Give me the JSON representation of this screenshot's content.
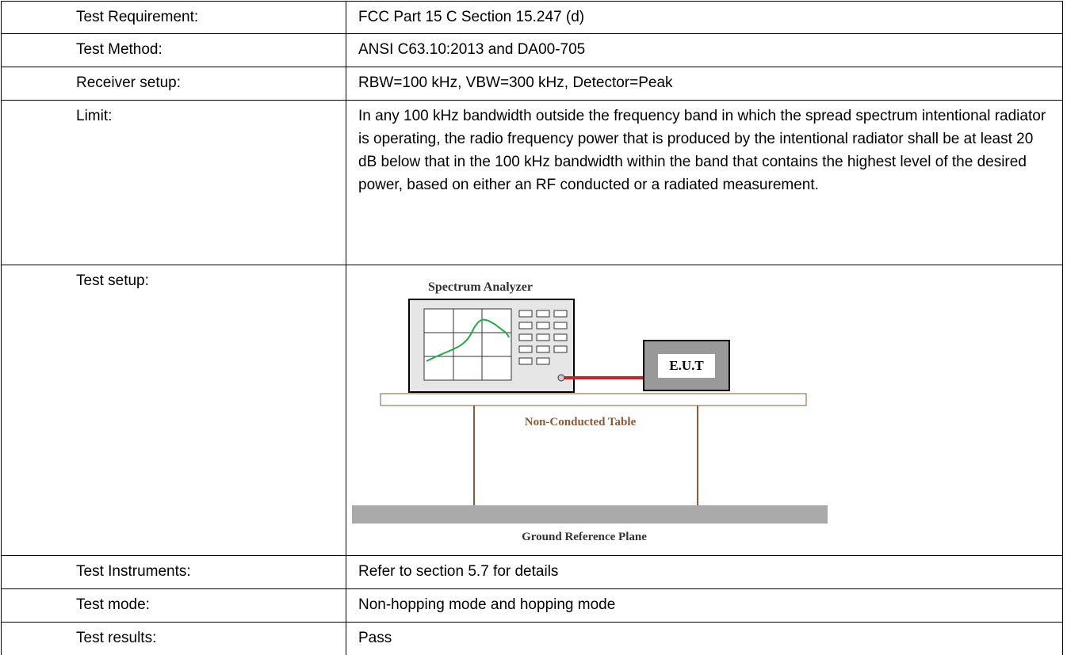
{
  "table": {
    "rows": [
      {
        "label": "Test Requirement:",
        "value": "FCC Part 15 C Section 15.247 (d)"
      },
      {
        "label": "Test Method:",
        "value": "ANSI C63.10:2013 and DA00-705"
      },
      {
        "label": "Receiver setup:",
        "value": "RBW=100 kHz, VBW=300 kHz, Detector=Peak"
      },
      {
        "label": "Limit:",
        "value": "In any 100 kHz bandwidth outside the frequency band in which the spread spectrum intentional radiator is operating, the radio frequency power that is produced by the intentional radiator shall be at least 20 dB below that in the 100 kHz bandwidth within the band that contains the highest level of the desired power, based on either an RF conducted or a radiated measurement."
      },
      {
        "label": "Test setup:",
        "diagram": {
          "analyzer": "Spectrum Analyzer",
          "eut": "E.U.T",
          "table": "Non-Conducted Table",
          "ground": "Ground Reference Plane"
        }
      },
      {
        "label": "Test Instruments:",
        "value": "Refer to section 5.7 for details"
      },
      {
        "label": "Test mode:",
        "value": "Non-hopping mode and hopping mode"
      },
      {
        "label": "Test results:",
        "value": "Pass"
      }
    ]
  }
}
